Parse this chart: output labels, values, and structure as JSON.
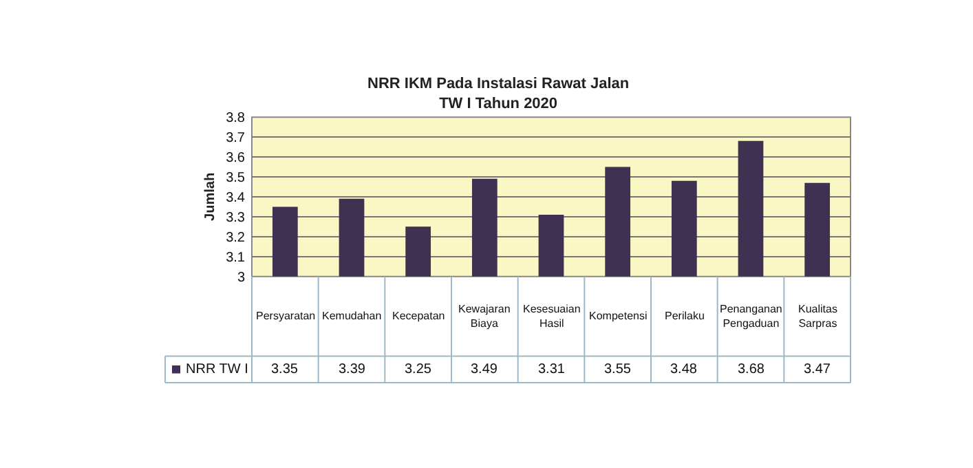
{
  "chart_data": {
    "type": "bar",
    "title": "NRR IKM Pada Instalasi Rawat Jalan\nTW I Tahun 2020",
    "ylabel": "Jumlah",
    "categories": [
      "Persyaratan",
      "Kemudahan",
      "Kecepatan",
      "Kewajaran Biaya",
      "Kesesuaian Hasil",
      "Kompetensi",
      "Perilaku",
      "Penanganan Pengaduan",
      "Kualitas Sarpras"
    ],
    "series": [
      {
        "name": "NRR TW I",
        "color": "#3f3151",
        "values": [
          3.35,
          3.39,
          3.25,
          3.49,
          3.31,
          3.55,
          3.48,
          3.68,
          3.47
        ]
      }
    ],
    "ylim": [
      3,
      3.8
    ],
    "yticks": [
      3,
      3.1,
      3.2,
      3.3,
      3.4,
      3.5,
      3.6,
      3.7,
      3.8
    ],
    "grid": "y",
    "legend": "bottom left",
    "data_labels": true
  }
}
